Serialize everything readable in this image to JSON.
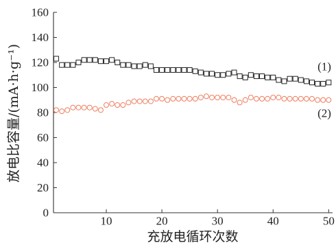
{
  "chart_data": {
    "type": "scatter",
    "xlabel": "充放电循环次数",
    "ylabel": "放电比容量/(mA·h·g⁻¹)",
    "xlim": [
      0.5,
      50.7
    ],
    "ylim": [
      0,
      160
    ],
    "x_ticks": [
      10,
      20,
      30,
      40,
      50
    ],
    "y_ticks": [
      0,
      20,
      40,
      60,
      80,
      100,
      120,
      140,
      160
    ],
    "grid": false,
    "x": [
      1,
      2,
      3,
      4,
      5,
      6,
      7,
      8,
      9,
      10,
      11,
      12,
      13,
      14,
      15,
      16,
      17,
      18,
      19,
      20,
      21,
      22,
      23,
      24,
      25,
      26,
      27,
      28,
      29,
      30,
      31,
      32,
      33,
      34,
      35,
      36,
      37,
      38,
      39,
      40,
      41,
      42,
      43,
      44,
      45,
      46,
      47,
      48,
      49,
      50
    ],
    "series": [
      {
        "name": "(1)",
        "marker": "square",
        "color": "#222222",
        "values": [
          123,
          118,
          118,
          118,
          120,
          122,
          122,
          122,
          121,
          121,
          122,
          120,
          118,
          118,
          117,
          117,
          118,
          117,
          114,
          114,
          114,
          114,
          114,
          114,
          114,
          113,
          112,
          111,
          111,
          110,
          110,
          111,
          112,
          109,
          108,
          110,
          109,
          109,
          108,
          108,
          106,
          105,
          107,
          107,
          106,
          105,
          104,
          103,
          103,
          104
        ]
      },
      {
        "name": "(2)",
        "marker": "circle",
        "color": "#ee7d5d",
        "values": [
          82,
          81,
          82,
          84,
          84,
          84,
          84,
          83,
          82,
          86,
          87,
          86,
          86,
          88,
          89,
          89,
          89,
          89,
          91,
          91,
          90,
          91,
          91,
          91,
          91,
          91,
          92,
          93,
          92,
          92,
          92,
          92,
          90,
          88,
          90,
          92,
          91,
          91,
          91,
          92,
          92,
          91,
          91,
          91,
          91,
          91,
          91,
          90,
          90,
          90
        ]
      }
    ]
  }
}
